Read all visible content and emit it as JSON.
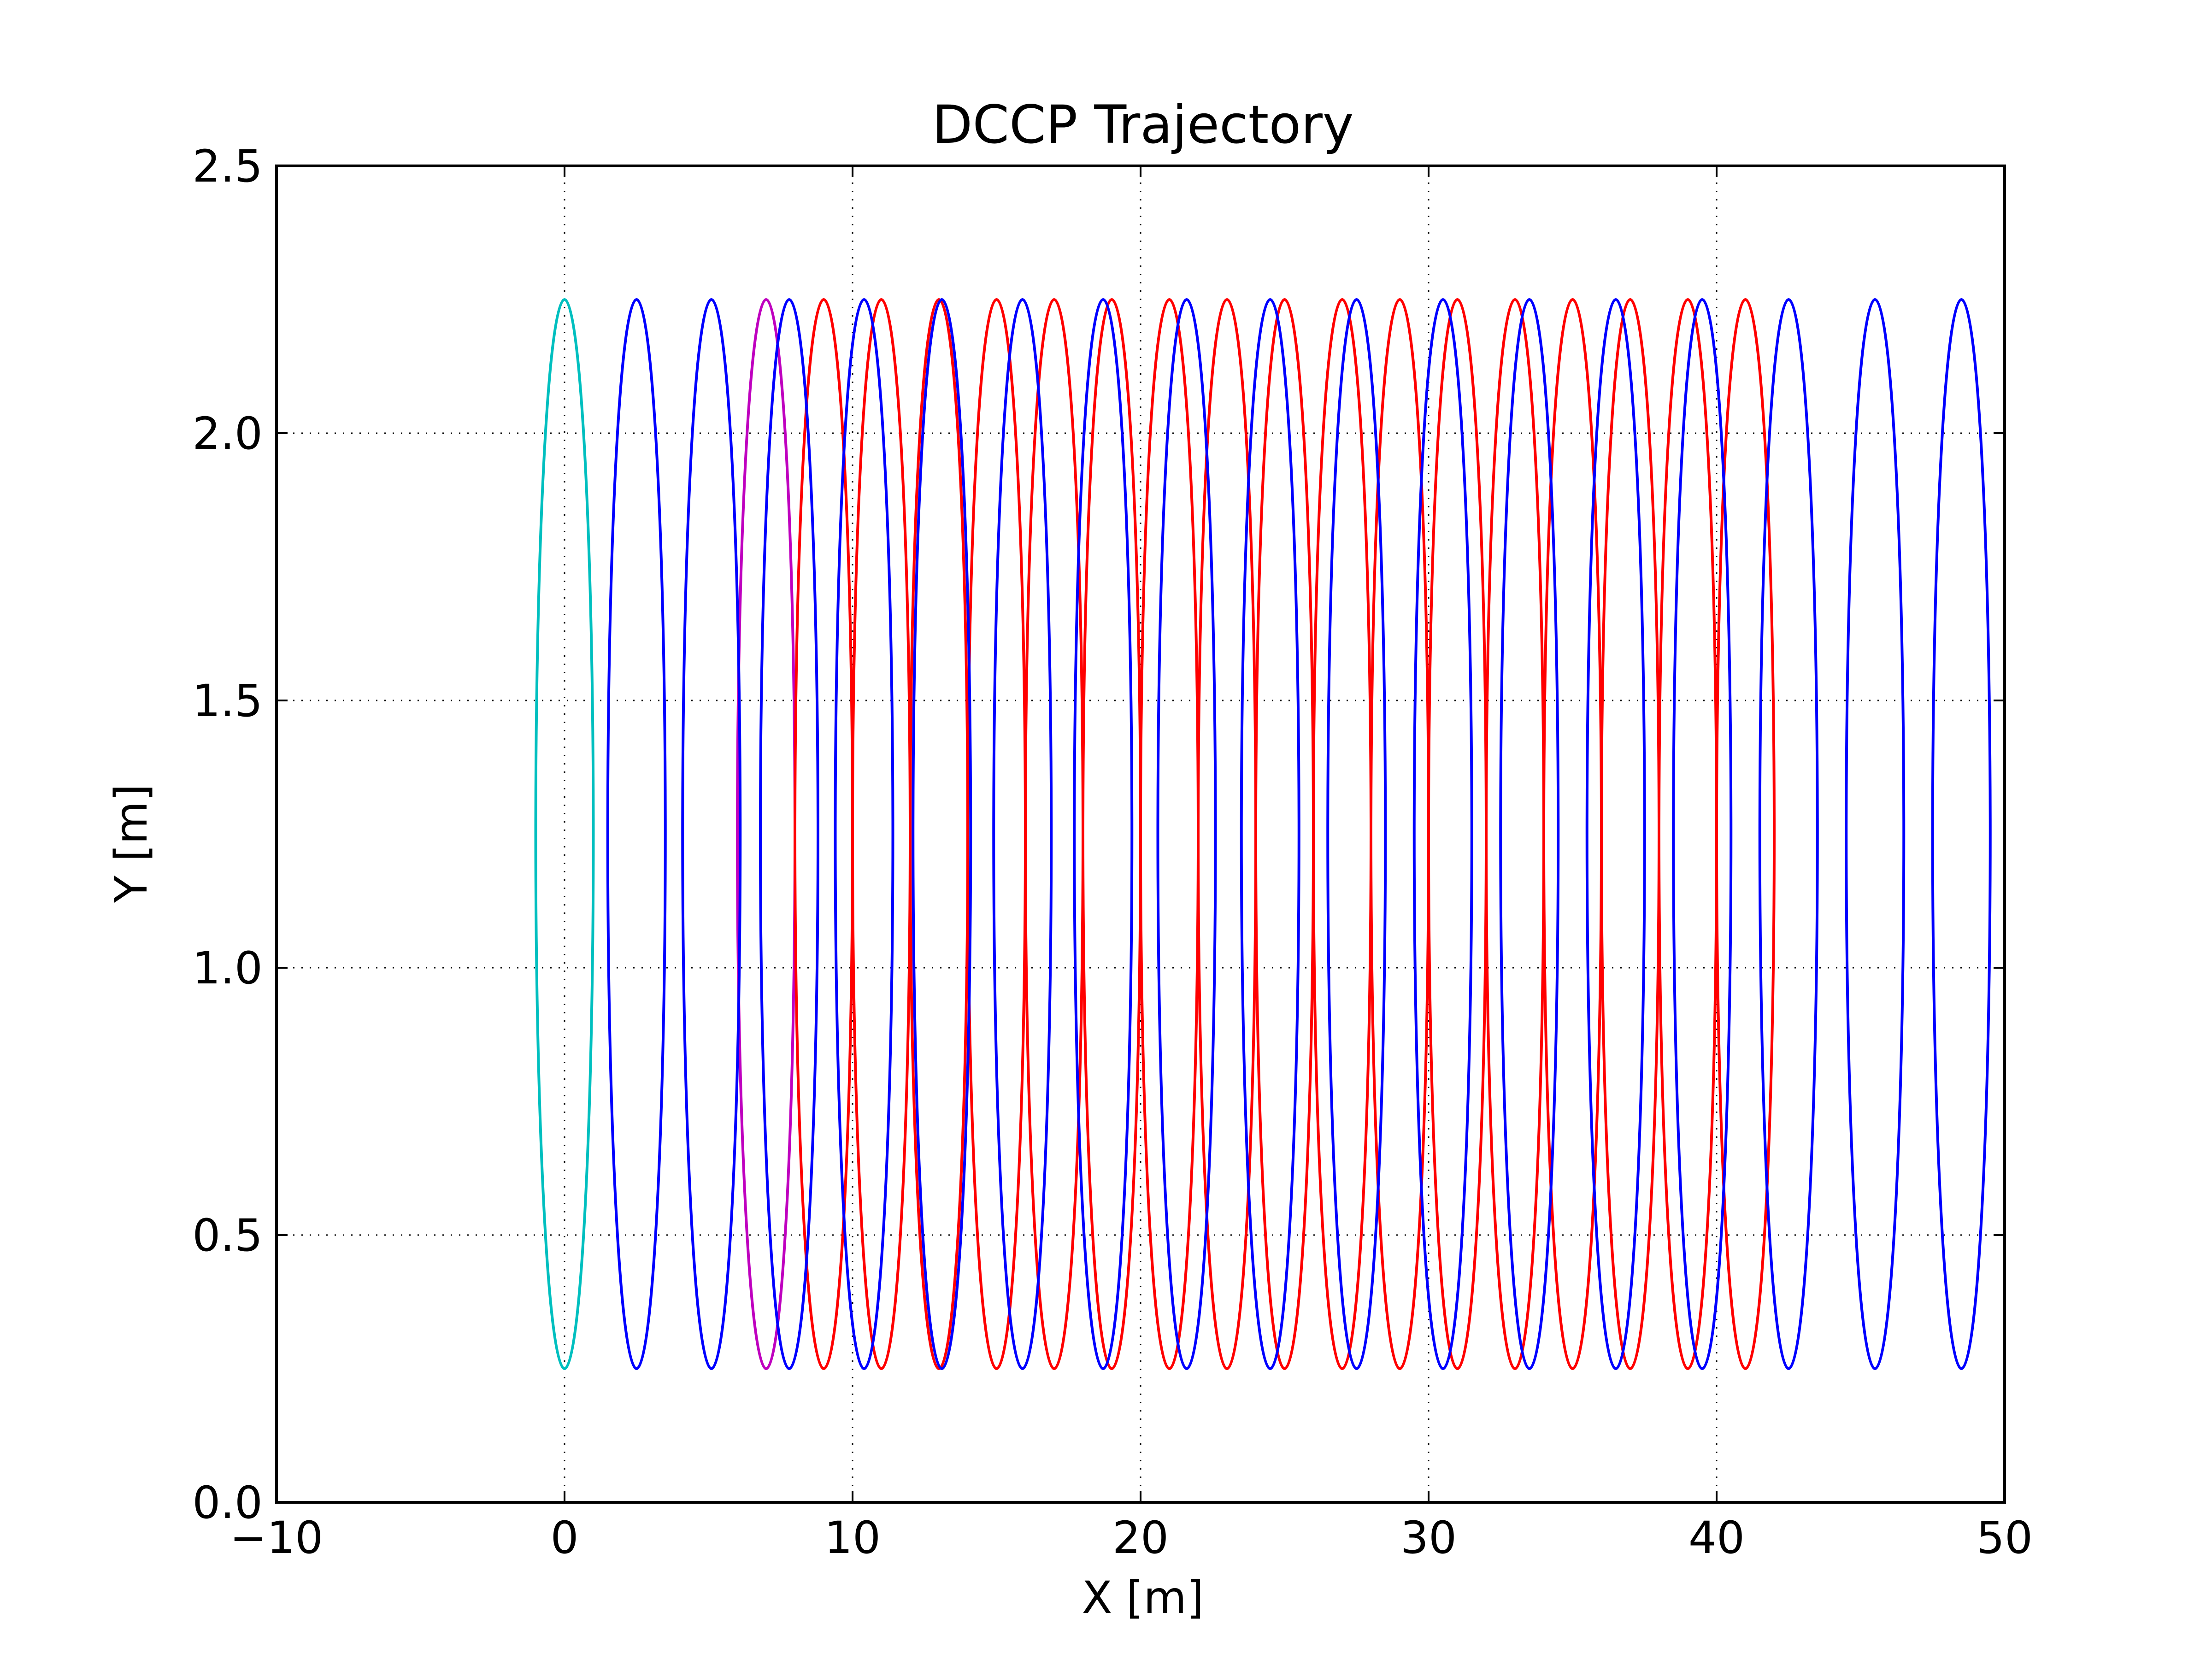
{
  "chart_data": {
    "type": "line",
    "title": "DCCP Trajectory",
    "xlabel": "X [m]",
    "ylabel": "Y [m]",
    "xlim": [
      -10,
      50
    ],
    "ylim": [
      0.0,
      2.5
    ],
    "xticks": [
      -10,
      0,
      10,
      20,
      30,
      40,
      50
    ],
    "xtick_labels": [
      "−10",
      "0",
      "10",
      "20",
      "30",
      "40",
      "50"
    ],
    "yticks": [
      0.0,
      0.5,
      1.0,
      1.5,
      2.0,
      2.5
    ],
    "ytick_labels": [
      "0.0",
      "0.5",
      "1.0",
      "1.5",
      "2.0",
      "2.5"
    ],
    "grid": true,
    "legend": "none",
    "series": [
      {
        "color": "#00bfbf",
        "shape": "loops",
        "loop_centers_x": [
          0.0
        ],
        "loop_half_width": 1.0,
        "y_min": 0.25,
        "y_max": 2.25
      },
      {
        "color": "#bf00bf",
        "shape": "loops",
        "loop_centers_x": [
          7.0
        ],
        "loop_half_width": 1.0,
        "y_min": 0.25,
        "y_max": 2.25
      },
      {
        "color": "#ff0000",
        "shape": "loops",
        "loop_centers_x": [
          9.0,
          11.0,
          13.0,
          15.0,
          17.0,
          19.0,
          21.0,
          23.0,
          25.0,
          27.0,
          29.0,
          31.0,
          33.0,
          35.0,
          37.0,
          39.0,
          41.0
        ],
        "loop_half_width": 1.0,
        "y_min": 0.25,
        "y_max": 2.25
      },
      {
        "color": "#0000ff",
        "shape": "loops",
        "loop_centers_x": [
          2.5,
          5.1,
          7.8,
          10.4,
          13.1,
          15.9,
          18.7,
          21.6,
          24.5,
          27.5,
          30.5,
          33.5,
          36.5,
          39.5,
          42.5,
          45.5,
          48.5
        ],
        "loop_half_width": 1.0,
        "y_min": 0.25,
        "y_max": 2.25
      }
    ]
  }
}
